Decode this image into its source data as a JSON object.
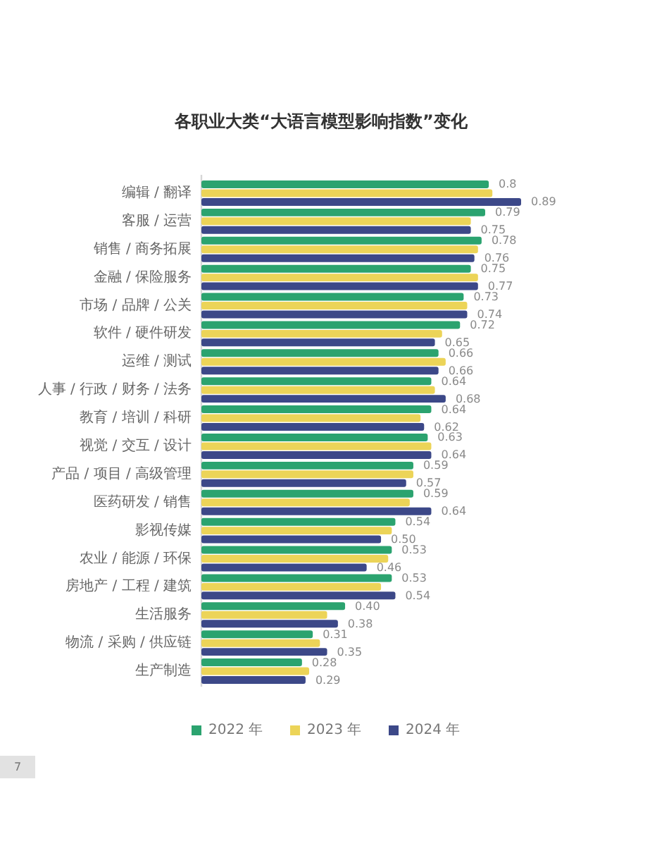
{
  "chart_data": {
    "type": "bar",
    "orientation": "horizontal",
    "title": "各职业大类“大语言模型影响指数”变化",
    "categories": [
      "编辑 / 翻译",
      "客服 / 运营",
      "销售 / 商务拓展",
      "金融 / 保险服务",
      "市场 / 品牌 / 公关",
      "软件 / 硬件研发",
      "运维 / 测试",
      "人事 / 行政 / 财务 / 法务",
      "教育 / 培训 / 科研",
      "视觉 / 交互 / 设计",
      "产品 / 项目 / 高级管理",
      "医药研发 / 销售",
      "影视传媒",
      "农业 / 能源 / 环保",
      "房地产 / 工程 / 建筑",
      "生活服务",
      "物流 / 采购 / 供应链",
      "生产制造"
    ],
    "series": [
      {
        "name": "2022 年",
        "color": "#2ba36f",
        "values": [
          0.8,
          0.79,
          0.78,
          0.75,
          0.73,
          0.72,
          0.66,
          0.64,
          0.64,
          0.63,
          0.59,
          0.59,
          0.54,
          0.53,
          0.53,
          0.4,
          0.31,
          0.28
        ],
        "value_labels": [
          "0.8",
          "0.79",
          "0.78",
          "0.75",
          "0.73",
          "0.72",
          "0.66",
          "0.64",
          "0.64",
          "0.63",
          "0.59",
          "0.59",
          "0.54",
          "0.53",
          "0.53",
          "0.40",
          "0.31",
          "0.28"
        ]
      },
      {
        "name": "2023 年",
        "color": "#ecd458",
        "values": [
          0.81,
          0.75,
          0.77,
          0.77,
          0.74,
          0.67,
          0.68,
          0.65,
          0.61,
          0.64,
          0.59,
          0.58,
          0.53,
          0.52,
          0.5,
          0.35,
          0.33,
          0.3
        ]
      },
      {
        "name": "2024 年",
        "color": "#3c4888",
        "values": [
          0.89,
          0.75,
          0.76,
          0.77,
          0.74,
          0.65,
          0.66,
          0.68,
          0.62,
          0.64,
          0.57,
          0.64,
          0.5,
          0.46,
          0.54,
          0.38,
          0.35,
          0.29
        ],
        "value_labels": [
          "0.89",
          "0.75",
          "0.76",
          "0.77",
          "0.74",
          "0.65",
          "0.66",
          "0.68",
          "0.62",
          "0.64",
          "0.57",
          "0.64",
          "0.50",
          "0.46",
          "0.54",
          "0.38",
          "0.35",
          "0.29"
        ]
      }
    ],
    "legend": "bottom",
    "annotations": [
      "7"
    ]
  }
}
